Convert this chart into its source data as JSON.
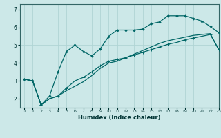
{
  "xlabel": "Humidex (Indice chaleur)",
  "bg_color": "#cce8e8",
  "grid_color": "#b0d4d4",
  "line_color": "#006666",
  "xlim": [
    -0.5,
    23
  ],
  "ylim": [
    1.5,
    7.3
  ],
  "yticks": [
    2,
    3,
    4,
    5,
    6,
    7
  ],
  "xticks": [
    0,
    1,
    2,
    3,
    4,
    5,
    6,
    7,
    8,
    9,
    10,
    11,
    12,
    13,
    14,
    15,
    16,
    17,
    18,
    19,
    20,
    21,
    22,
    23
  ],
  "line1_x": [
    0,
    1,
    2,
    3,
    4,
    5,
    6,
    7,
    8,
    9,
    10,
    11,
    12,
    13,
    14,
    15,
    16,
    17,
    18,
    19,
    20,
    21,
    22,
    23
  ],
  "line1_y": [
    3.1,
    3.0,
    1.65,
    2.0,
    2.15,
    2.45,
    2.7,
    2.95,
    3.3,
    3.7,
    4.0,
    4.1,
    4.3,
    4.5,
    4.7,
    4.9,
    5.1,
    5.25,
    5.35,
    5.45,
    5.55,
    5.6,
    5.65,
    4.75
  ],
  "line2_x": [
    0,
    1,
    2,
    3,
    4,
    5,
    6,
    7,
    8,
    9,
    10,
    11,
    12,
    13,
    14,
    15,
    16,
    17,
    18,
    19,
    20,
    21,
    22,
    23
  ],
  "line2_y": [
    3.1,
    3.0,
    1.65,
    2.15,
    3.5,
    4.65,
    5.0,
    4.65,
    4.4,
    4.8,
    5.5,
    5.85,
    5.85,
    5.85,
    5.9,
    6.2,
    6.3,
    6.65,
    6.65,
    6.65,
    6.5,
    6.35,
    6.05,
    5.7
  ],
  "line3_x": [
    0,
    1,
    2,
    3,
    4,
    5,
    6,
    7,
    8,
    9,
    10,
    11,
    12,
    13,
    14,
    15,
    16,
    17,
    18,
    19,
    20,
    21,
    22,
    23
  ],
  "line3_y": [
    3.1,
    3.0,
    1.65,
    2.0,
    2.15,
    2.6,
    3.0,
    3.2,
    3.5,
    3.85,
    4.1,
    4.2,
    4.3,
    4.45,
    4.6,
    4.75,
    4.9,
    5.05,
    5.15,
    5.3,
    5.4,
    5.5,
    5.6,
    4.75
  ]
}
